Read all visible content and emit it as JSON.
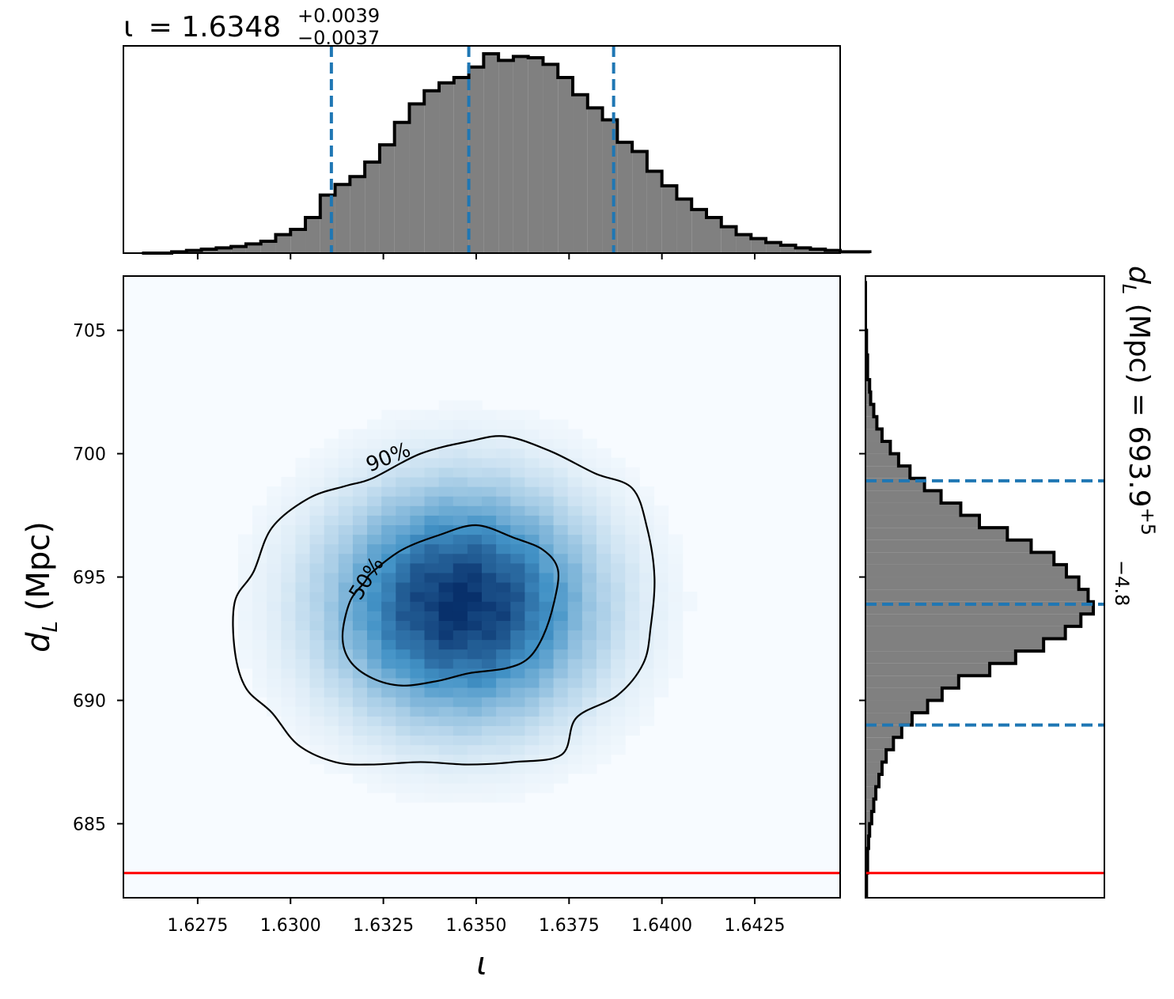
{
  "colors": {
    "hist_fill": "#808080",
    "hist_edge": "#000000",
    "quantile_line": "#1f77b4",
    "truth_line": "#ff0000",
    "density_low": "#f7fbff",
    "density_high": "#08306b"
  },
  "chart_data": [
    {
      "panel": "top-marginal",
      "type": "histogram",
      "title": {
        "symbol": "ι",
        "main": "= 1.6348",
        "sup": "+0.0039",
        "sub": "−0.0037"
      },
      "xlim": [
        1.6255,
        1.6448
      ],
      "bin_start": 1.626,
      "bin_width": 0.0004,
      "counts": [
        0,
        0,
        1,
        2,
        3,
        4,
        5,
        7,
        9,
        14,
        18,
        27,
        44,
        52,
        58,
        69,
        82,
        99,
        113,
        123,
        129,
        133,
        141,
        151,
        146,
        149,
        148,
        143,
        133,
        120,
        110,
        101,
        84,
        77,
        62,
        51,
        41,
        33,
        27,
        20,
        14,
        11,
        8,
        6,
        4,
        3,
        2,
        1,
        1
      ],
      "quantiles": [
        1.6311,
        1.6348,
        1.6387
      ],
      "x_ticks": [
        1.6275,
        1.63,
        1.6325,
        1.635,
        1.6375,
        1.64,
        1.6425
      ]
    },
    {
      "panel": "joint",
      "type": "heatmap",
      "xlabel": "ι",
      "ylabel": {
        "base": "d",
        "sub": "L",
        "rest": " (Mpc)"
      },
      "xlim": [
        1.6255,
        1.6448
      ],
      "ylim": [
        682.0,
        707.2
      ],
      "x_ticks": [
        1.6275,
        1.63,
        1.6325,
        1.635,
        1.6375,
        1.64,
        1.6425
      ],
      "x_tick_labels": [
        "1.6275",
        "1.6300",
        "1.6325",
        "1.6350",
        "1.6375",
        "1.6400",
        "1.6425"
      ],
      "y_ticks": [
        685,
        690,
        695,
        700,
        705
      ],
      "y_tick_labels": [
        "685",
        "690",
        "695",
        "700",
        "705"
      ],
      "density_center": [
        1.6346,
        693.9
      ],
      "density_sigma": [
        0.0022,
        2.9
      ],
      "contours": [
        {
          "label": "50%",
          "points": [
            [
              1.6322,
              695.2
            ],
            [
              1.633,
              696.1
            ],
            [
              1.634,
              696.7
            ],
            [
              1.635,
              697.1
            ],
            [
              1.636,
              696.6
            ],
            [
              1.6368,
              696.1
            ],
            [
              1.6372,
              695.3
            ],
            [
              1.6371,
              694.0
            ],
            [
              1.6368,
              692.6
            ],
            [
              1.6364,
              691.7
            ],
            [
              1.6358,
              691.3
            ],
            [
              1.6348,
              691.1
            ],
            [
              1.634,
              690.8
            ],
            [
              1.633,
              690.6
            ],
            [
              1.6322,
              690.9
            ],
            [
              1.6316,
              691.6
            ],
            [
              1.6314,
              692.6
            ],
            [
              1.6316,
              694.0
            ],
            [
              1.632,
              694.8
            ]
          ]
        },
        {
          "label": "90%",
          "points": [
            [
              1.6322,
              699.0
            ],
            [
              1.6335,
              700.0
            ],
            [
              1.6348,
              700.5
            ],
            [
              1.6358,
              700.7
            ],
            [
              1.637,
              700.1
            ],
            [
              1.6382,
              699.2
            ],
            [
              1.6392,
              698.6
            ],
            [
              1.6396,
              697.0
            ],
            [
              1.6398,
              695.0
            ],
            [
              1.6397,
              693.0
            ],
            [
              1.6395,
              691.5
            ],
            [
              1.6388,
              690.2
            ],
            [
              1.6377,
              689.3
            ],
            [
              1.6373,
              687.8
            ],
            [
              1.636,
              687.5
            ],
            [
              1.6348,
              687.4
            ],
            [
              1.6335,
              687.5
            ],
            [
              1.6322,
              687.4
            ],
            [
              1.6312,
              687.5
            ],
            [
              1.6302,
              688.2
            ],
            [
              1.6295,
              689.5
            ],
            [
              1.6288,
              690.5
            ],
            [
              1.6285,
              692.0
            ],
            [
              1.6285,
              694.0
            ],
            [
              1.629,
              695.2
            ],
            [
              1.6295,
              697.0
            ],
            [
              1.6305,
              698.2
            ],
            [
              1.6315,
              698.7
            ]
          ]
        }
      ],
      "truth": {
        "dL": 683.0
      }
    },
    {
      "panel": "right-marginal",
      "type": "histogram",
      "orientation": "horizontal",
      "title": {
        "main": "d",
        "sub_L": "L",
        "rest": " (Mpc) = 693.9",
        "sup": "+5",
        "sub": "−4.8"
      },
      "ylim": [
        682.0,
        707.2
      ],
      "bin_start": 682.0,
      "bin_width": 0.5,
      "counts": [
        1,
        1,
        2,
        2,
        3,
        4,
        6,
        8,
        10,
        13,
        16,
        20,
        27,
        35,
        45,
        60,
        74,
        90,
        120,
        145,
        172,
        193,
        208,
        220,
        215,
        206,
        194,
        182,
        160,
        137,
        110,
        92,
        73,
        57,
        43,
        32,
        24,
        16,
        11,
        8,
        5,
        4,
        2,
        2,
        1,
        1,
        0,
        0,
        0,
        0
      ],
      "quantiles": [
        689.0,
        693.9,
        698.9
      ],
      "y_ticks": [
        685,
        690,
        695,
        700,
        705
      ],
      "truth": {
        "dL": 683.0
      }
    }
  ]
}
